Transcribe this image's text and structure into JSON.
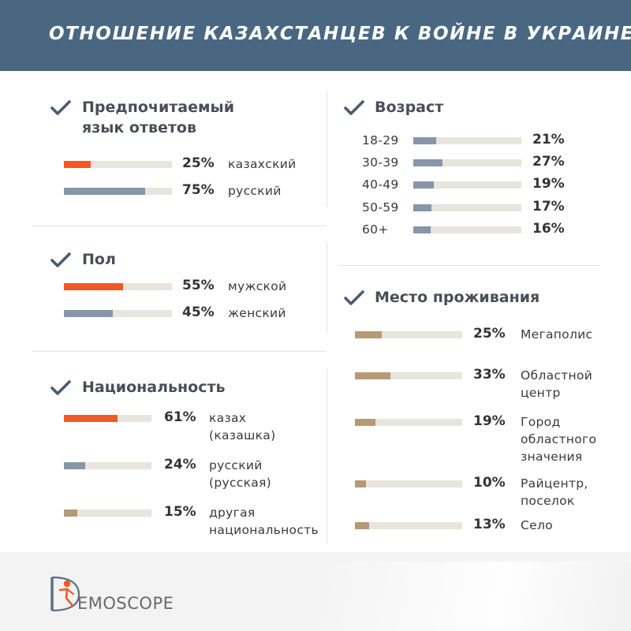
{
  "header": {
    "title": "ОТНОШЕНИЕ КАЗАХСТАНЦЕВ К ВОЙНЕ В УКРАИНЕ"
  },
  "colors": {
    "orange": "#f15a24",
    "blue_gray": "#8796a8",
    "tan": "#b59a77",
    "track": "#e8e4de",
    "header": "#4a6782",
    "check": "#4a5b6e"
  },
  "footer": {
    "brand": "EMOSCOPE"
  },
  "chart_data": [
    {
      "type": "bar",
      "title": "Предпочитаемый язык ответов",
      "title_lines": [
        "Предпочитаемый",
        "язык ответов"
      ],
      "categories": [
        "казахский",
        "русский"
      ],
      "values": [
        25,
        75
      ],
      "labels": [
        "25%",
        "75%"
      ],
      "colors": [
        "#f15a24",
        "#8796a8"
      ],
      "xlim": [
        0,
        100
      ]
    },
    {
      "type": "bar",
      "title": "Пол",
      "title_lines": [
        "Пол"
      ],
      "categories": [
        "мужской",
        "женский"
      ],
      "values": [
        55,
        45
      ],
      "labels": [
        "55%",
        "45%"
      ],
      "colors": [
        "#f15a24",
        "#8796a8"
      ],
      "xlim": [
        0,
        100
      ]
    },
    {
      "type": "bar",
      "title": "Национальность",
      "title_lines": [
        "Национальность"
      ],
      "categories": [
        "казах (казашка)",
        "русский (русская)",
        "другая национальность"
      ],
      "category_lines": [
        [
          "казах",
          "(казашка)"
        ],
        [
          "русский",
          "(русская)"
        ],
        [
          "другая",
          "национальность"
        ]
      ],
      "values": [
        61,
        24,
        15
      ],
      "labels": [
        "61%",
        "24%",
        "15%"
      ],
      "colors": [
        "#f15a24",
        "#8796a8",
        "#b59a77"
      ],
      "xlim": [
        0,
        100
      ]
    },
    {
      "type": "bar",
      "title": "Возраст",
      "title_lines": [
        "Возраст"
      ],
      "categories": [
        "18-29",
        "30-39",
        "40-49",
        "50-59",
        "60+"
      ],
      "values": [
        21,
        27,
        19,
        17,
        16
      ],
      "labels": [
        "21%",
        "27%",
        "19%",
        "17%",
        "16%"
      ],
      "colors": [
        "#8796a8",
        "#8796a8",
        "#8796a8",
        "#8796a8",
        "#8796a8"
      ],
      "xlim": [
        0,
        100
      ]
    },
    {
      "type": "bar",
      "title": "Место проживания",
      "title_lines": [
        "Место проживания"
      ],
      "categories": [
        "Мегаполис",
        "Областной центр",
        "Город областного значения",
        "Райцентр, поселок",
        "Село"
      ],
      "category_lines": [
        [
          "Мегаполис"
        ],
        [
          "Областной",
          "центр"
        ],
        [
          "Город",
          "областного",
          "значения"
        ],
        [
          "Райцентр,",
          "поселок"
        ],
        [
          "Село"
        ]
      ],
      "values": [
        25,
        33,
        19,
        10,
        13
      ],
      "labels": [
        "25%",
        "33%",
        "19%",
        "10%",
        "13%"
      ],
      "colors": [
        "#b59a77",
        "#b59a77",
        "#b59a77",
        "#b59a77",
        "#b59a77"
      ],
      "xlim": [
        0,
        100
      ]
    }
  ]
}
